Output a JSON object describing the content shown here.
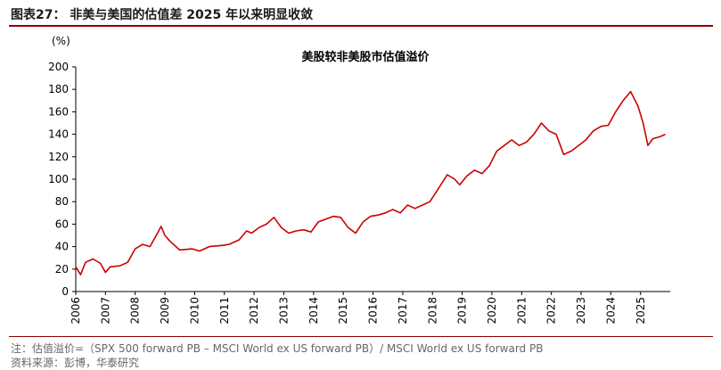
{
  "figure": {
    "title": "图表27：  非美与美国的估值差 2025 年以来明显收敛",
    "note": "注：估值溢价=（SPX 500 forward PB  –  MSCI World ex US forward PB）/ MSCI World ex US forward PB",
    "source": "资料来源：彭博，华泰研究"
  },
  "colors": {
    "series": "#cc0000",
    "rule": "#8b0000",
    "axis": "#000000"
  },
  "chart_data": {
    "type": "line",
    "title": "美股较非美股市估值溢价",
    "unit_label": "(%)",
    "xlabel": "",
    "ylabel": "",
    "ylim": [
      0,
      200
    ],
    "yticks": [
      0,
      20,
      40,
      60,
      80,
      100,
      120,
      140,
      160,
      180,
      200
    ],
    "xlim": [
      "2006-01-01",
      "2025-12-31"
    ],
    "xticks": [
      "2006",
      "2007",
      "2008",
      "2009",
      "2010",
      "2011",
      "2012",
      "2013",
      "2014",
      "2015",
      "2016",
      "2017",
      "2018",
      "2019",
      "2020",
      "2021",
      "2022",
      "2023",
      "2024",
      "2025"
    ],
    "grid": false,
    "legend": "none",
    "series": [
      {
        "name": "",
        "points": [
          [
            "2006-01-01",
            22
          ],
          [
            "2006-03-01",
            15
          ],
          [
            "2006-05-01",
            26
          ],
          [
            "2006-08-01",
            29
          ],
          [
            "2006-11-01",
            25
          ],
          [
            "2007-01-01",
            17
          ],
          [
            "2007-03-01",
            22
          ],
          [
            "2007-07-01",
            23
          ],
          [
            "2007-10-01",
            26
          ],
          [
            "2008-01-01",
            38
          ],
          [
            "2008-04-01",
            42
          ],
          [
            "2008-07-01",
            40
          ],
          [
            "2008-10-01",
            52
          ],
          [
            "2008-11-15",
            58
          ],
          [
            "2008-12-31",
            50
          ],
          [
            "2009-03-01",
            45
          ],
          [
            "2009-07-01",
            37
          ],
          [
            "2009-12-01",
            38
          ],
          [
            "2010-03-01",
            36
          ],
          [
            "2010-07-01",
            40
          ],
          [
            "2010-12-01",
            41
          ],
          [
            "2011-03-01",
            42
          ],
          [
            "2011-07-01",
            46
          ],
          [
            "2011-10-01",
            54
          ],
          [
            "2011-12-01",
            52
          ],
          [
            "2012-03-01",
            57
          ],
          [
            "2012-06-01",
            60
          ],
          [
            "2012-09-01",
            66
          ],
          [
            "2012-12-01",
            57
          ],
          [
            "2013-03-01",
            52
          ],
          [
            "2013-06-01",
            54
          ],
          [
            "2013-09-01",
            55
          ],
          [
            "2013-12-01",
            53
          ],
          [
            "2014-03-01",
            62
          ],
          [
            "2014-09-01",
            67
          ],
          [
            "2014-12-01",
            66
          ],
          [
            "2015-03-01",
            57
          ],
          [
            "2015-06-01",
            52
          ],
          [
            "2015-09-01",
            62
          ],
          [
            "2015-12-01",
            67
          ],
          [
            "2016-03-01",
            68
          ],
          [
            "2016-06-01",
            70
          ],
          [
            "2016-09-01",
            73
          ],
          [
            "2016-12-01",
            70
          ],
          [
            "2017-03-01",
            77
          ],
          [
            "2017-06-01",
            74
          ],
          [
            "2017-09-01",
            77
          ],
          [
            "2017-12-01",
            80
          ],
          [
            "2018-03-01",
            90
          ],
          [
            "2018-07-01",
            104
          ],
          [
            "2018-10-01",
            100
          ],
          [
            "2018-12-01",
            95
          ],
          [
            "2019-03-01",
            103
          ],
          [
            "2019-06-01",
            108
          ],
          [
            "2019-09-01",
            105
          ],
          [
            "2019-12-01",
            112
          ],
          [
            "2020-03-01",
            125
          ],
          [
            "2020-06-01",
            130
          ],
          [
            "2020-09-01",
            135
          ],
          [
            "2020-12-01",
            130
          ],
          [
            "2021-03-01",
            133
          ],
          [
            "2021-06-01",
            140
          ],
          [
            "2021-09-01",
            150
          ],
          [
            "2021-12-01",
            143
          ],
          [
            "2022-03-01",
            140
          ],
          [
            "2022-06-01",
            122
          ],
          [
            "2022-09-01",
            125
          ],
          [
            "2022-12-01",
            130
          ],
          [
            "2023-03-01",
            135
          ],
          [
            "2023-06-01",
            143
          ],
          [
            "2023-09-01",
            147
          ],
          [
            "2023-12-01",
            148
          ],
          [
            "2024-03-01",
            160
          ],
          [
            "2024-06-01",
            170
          ],
          [
            "2024-09-01",
            178
          ],
          [
            "2024-12-01",
            165
          ],
          [
            "2025-02-01",
            150
          ],
          [
            "2025-04-01",
            130
          ],
          [
            "2025-06-01",
            136
          ],
          [
            "2025-09-01",
            138
          ],
          [
            "2025-11-01",
            140
          ]
        ]
      }
    ]
  }
}
